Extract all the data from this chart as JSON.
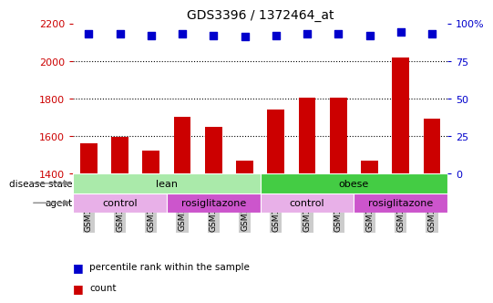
{
  "title": "GDS3396 / 1372464_at",
  "samples": [
    "GSM172979",
    "GSM172980",
    "GSM172981",
    "GSM172982",
    "GSM172983",
    "GSM172984",
    "GSM172987",
    "GSM172989",
    "GSM172990",
    "GSM172985",
    "GSM172986",
    "GSM172988"
  ],
  "counts": [
    1560,
    1595,
    1520,
    1700,
    1650,
    1470,
    1740,
    1805,
    1805,
    1470,
    2020,
    1690
  ],
  "percentile_ranks": [
    93,
    93,
    92,
    93,
    92,
    91,
    92,
    93,
    93,
    92,
    94,
    93
  ],
  "ylim_left": [
    1400,
    2200
  ],
  "ylim_right": [
    0,
    100
  ],
  "bar_color": "#cc0000",
  "dot_color": "#0000cc",
  "background_color": "#ffffff",
  "tick_label_color_left": "#cc0000",
  "tick_label_color_right": "#0000cc",
  "yticks_left": [
    1400,
    1600,
    1800,
    2000,
    2200
  ],
  "yticks_right": [
    0,
    25,
    50,
    75,
    100
  ],
  "grid_lines_at": [
    1600,
    1800,
    2000
  ],
  "disease_state_groups": [
    {
      "label": "lean",
      "start": 0,
      "end": 6,
      "color": "#aaeaaa"
    },
    {
      "label": "obese",
      "start": 6,
      "end": 12,
      "color": "#44cc44"
    }
  ],
  "agent_groups": [
    {
      "label": "control",
      "start": 0,
      "end": 3,
      "color": "#e8b0e8"
    },
    {
      "label": "rosiglitazone",
      "start": 3,
      "end": 6,
      "color": "#cc55cc"
    },
    {
      "label": "control",
      "start": 6,
      "end": 9,
      "color": "#e8b0e8"
    },
    {
      "label": "rosiglitazone",
      "start": 9,
      "end": 12,
      "color": "#cc55cc"
    }
  ],
  "legend_count_color": "#cc0000",
  "legend_dot_color": "#0000cc",
  "xticklabel_bg": "#cccccc",
  "dot_size": 35,
  "bar_width": 0.55
}
